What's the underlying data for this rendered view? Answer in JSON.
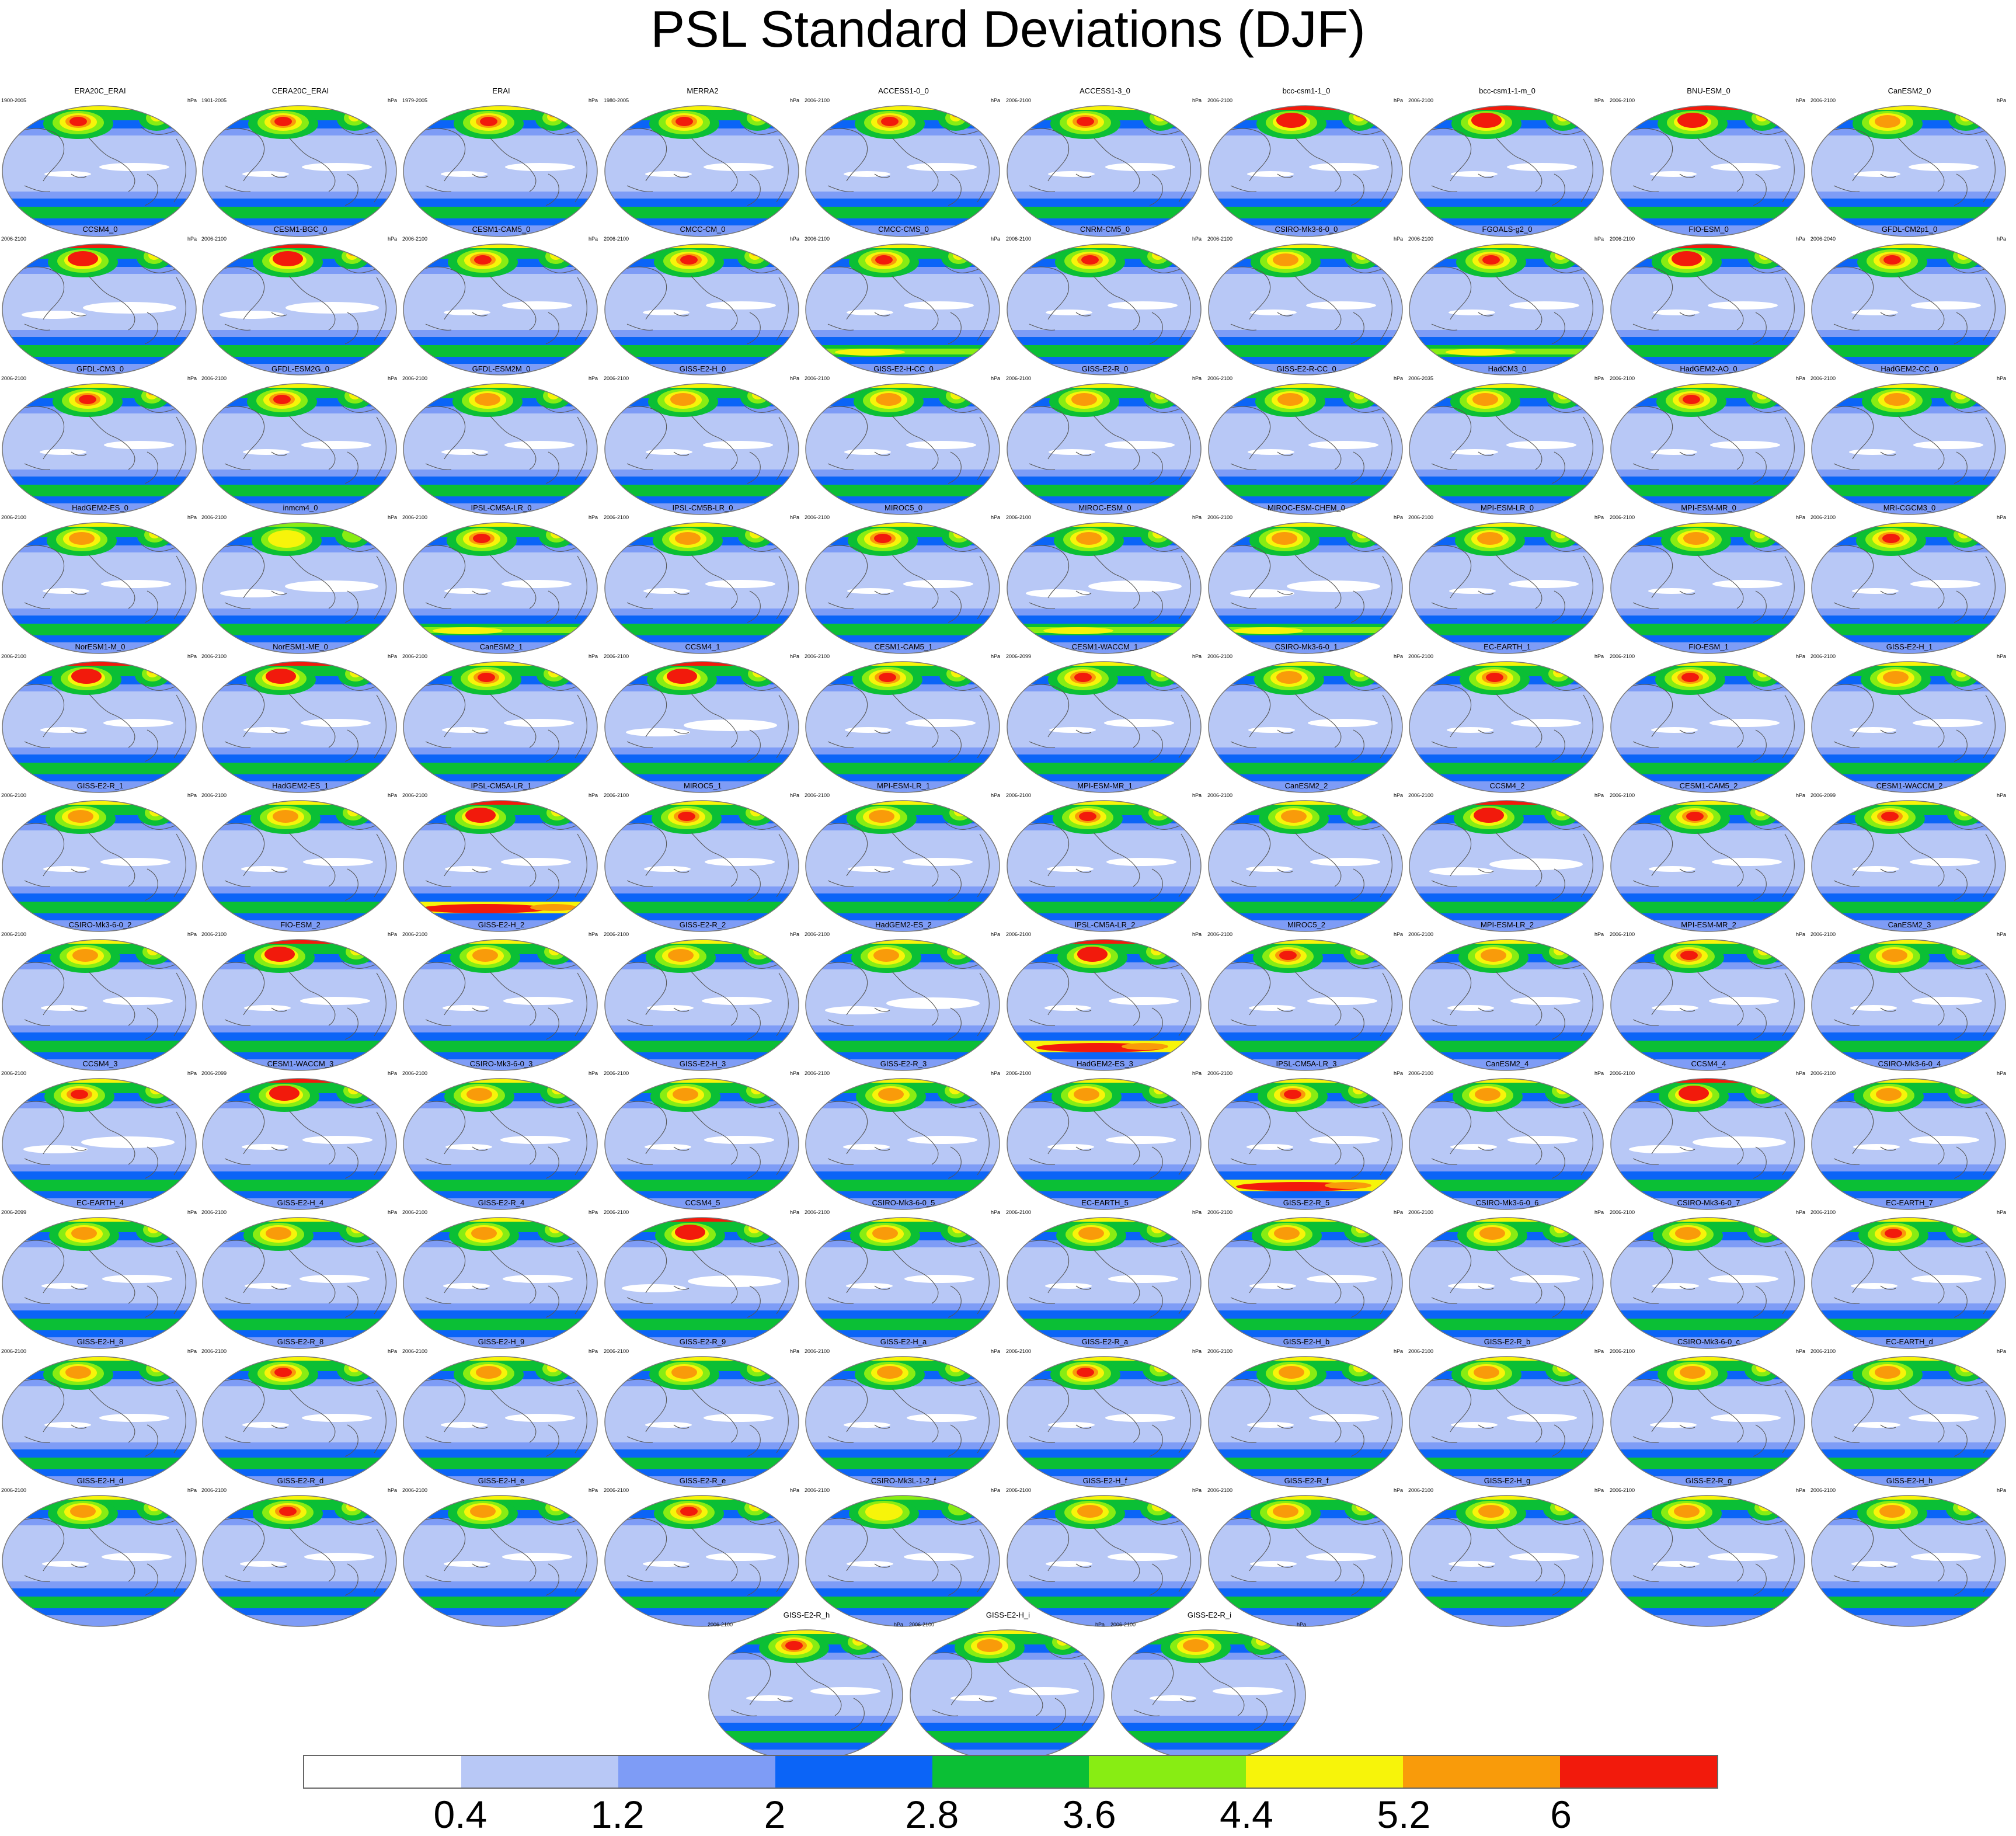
{
  "title": "PSL Standard Deviations (DJF)",
  "units": "hPa",
  "colorbar": {
    "labels": [
      "0.4",
      "1.2",
      "2",
      "2.8",
      "3.6",
      "4.4",
      "5.2",
      "6"
    ],
    "colors": [
      "#ffffff",
      "#b8c8f6",
      "#7e9cf6",
      "#0b64f7",
      "#0bbf35",
      "#88ed13",
      "#f7f40a",
      "#f99b0a",
      "#f21a0c"
    ]
  },
  "panels": [
    {
      "name": "ERA20C_ERAI",
      "years": "1900-2005",
      "nh": 3,
      "sh": 1,
      "trop": 1
    },
    {
      "name": "CERA20C_ERAI",
      "years": "1901-2005",
      "nh": 3,
      "sh": 1,
      "trop": 1
    },
    {
      "name": "ERAI",
      "years": "1979-2005",
      "nh": 3,
      "sh": 1,
      "trop": 1
    },
    {
      "name": "MERRA2",
      "years": "1980-2005",
      "nh": 3,
      "sh": 1,
      "trop": 1
    },
    {
      "name": "ACCESS1-0_0",
      "years": "2006-2100",
      "nh": 3,
      "sh": 1,
      "trop": 1
    },
    {
      "name": "ACCESS1-3_0",
      "years": "2006-2100",
      "nh": 3,
      "sh": 1,
      "trop": 1
    },
    {
      "name": "bcc-csm1-1_0",
      "years": "2006-2100",
      "nh": 4,
      "sh": 1,
      "trop": 1
    },
    {
      "name": "bcc-csm1-1-m_0",
      "years": "2006-2100",
      "nh": 4,
      "sh": 1,
      "trop": 1
    },
    {
      "name": "BNU-ESM_0",
      "years": "2006-2100",
      "nh": 4,
      "sh": 1,
      "trop": 1
    },
    {
      "name": "CanESM2_0",
      "years": "2006-2100",
      "nh": 2,
      "sh": 1,
      "trop": 1
    },
    {
      "name": "CCSM4_0",
      "years": "2006-2100",
      "nh": 4,
      "sh": 1,
      "trop": 0
    },
    {
      "name": "CESM1-BGC_0",
      "years": "2006-2100",
      "nh": 4,
      "sh": 1,
      "trop": 0
    },
    {
      "name": "CESM1-CAM5_0",
      "years": "2006-2100",
      "nh": 3,
      "sh": 1,
      "trop": 1
    },
    {
      "name": "CMCC-CM_0",
      "years": "2006-2100",
      "nh": 3,
      "sh": 1,
      "trop": 1
    },
    {
      "name": "CMCC-CMS_0",
      "years": "2006-2100",
      "nh": 3,
      "sh": 2,
      "trop": 1
    },
    {
      "name": "CNRM-CM5_0",
      "years": "2006-2100",
      "nh": 3,
      "sh": 1,
      "trop": 1
    },
    {
      "name": "CSIRO-Mk3-6-0_0",
      "years": "2006-2100",
      "nh": 2,
      "sh": 1,
      "trop": 1
    },
    {
      "name": "FGOALS-g2_0",
      "years": "2006-2100",
      "nh": 3,
      "sh": 2,
      "trop": 1
    },
    {
      "name": "FIO-ESM_0",
      "years": "2006-2100",
      "nh": 4,
      "sh": 1,
      "trop": 1
    },
    {
      "name": "GFDL-CM2p1_0",
      "years": "2006-2040",
      "nh": 3,
      "sh": 1,
      "trop": 1
    },
    {
      "name": "GFDL-CM3_0",
      "years": "2006-2100",
      "nh": 3,
      "sh": 1,
      "trop": 1
    },
    {
      "name": "GFDL-ESM2G_0",
      "years": "2006-2100",
      "nh": 3,
      "sh": 1,
      "trop": 1
    },
    {
      "name": "GFDL-ESM2M_0",
      "years": "2006-2100",
      "nh": 2,
      "sh": 1,
      "trop": 1
    },
    {
      "name": "GISS-E2-H_0",
      "years": "2006-2100",
      "nh": 2,
      "sh": 1,
      "trop": 1
    },
    {
      "name": "GISS-E2-H-CC_0",
      "years": "2006-2100",
      "nh": 2,
      "sh": 1,
      "trop": 1
    },
    {
      "name": "GISS-E2-R_0",
      "years": "2006-2100",
      "nh": 2,
      "sh": 1,
      "trop": 1
    },
    {
      "name": "GISS-E2-R-CC_0",
      "years": "2006-2100",
      "nh": 2,
      "sh": 1,
      "trop": 1
    },
    {
      "name": "HadCM3_0",
      "years": "2006-2035",
      "nh": 2,
      "sh": 1,
      "trop": 1
    },
    {
      "name": "HadGEM2-AO_0",
      "years": "2006-2100",
      "nh": 3,
      "sh": 1,
      "trop": 1
    },
    {
      "name": "HadGEM2-CC_0",
      "years": "2006-2100",
      "nh": 2,
      "sh": 1,
      "trop": 1
    },
    {
      "name": "HadGEM2-ES_0",
      "years": "2006-2100",
      "nh": 2,
      "sh": 1,
      "trop": 1
    },
    {
      "name": "inmcm4_0",
      "years": "2006-2100",
      "nh": 1,
      "sh": 1,
      "trop": 0
    },
    {
      "name": "IPSL-CM5A-LR_0",
      "years": "2006-2100",
      "nh": 3,
      "sh": 2,
      "trop": 1
    },
    {
      "name": "IPSL-CM5B-LR_0",
      "years": "2006-2100",
      "nh": 2,
      "sh": 1,
      "trop": 1
    },
    {
      "name": "MIROC5_0",
      "years": "2006-2100",
      "nh": 3,
      "sh": 1,
      "trop": 1
    },
    {
      "name": "MIROC-ESM_0",
      "years": "2006-2100",
      "nh": 2,
      "sh": 2,
      "trop": 0
    },
    {
      "name": "MIROC-ESM-CHEM_0",
      "years": "2006-2100",
      "nh": 2,
      "sh": 2,
      "trop": 0
    },
    {
      "name": "MPI-ESM-LR_0",
      "years": "2006-2100",
      "nh": 2,
      "sh": 1,
      "trop": 1
    },
    {
      "name": "MPI-ESM-MR_0",
      "years": "2006-2100",
      "nh": 2,
      "sh": 1,
      "trop": 1
    },
    {
      "name": "MRI-CGCM3_0",
      "years": "2006-2100",
      "nh": 3,
      "sh": 1,
      "trop": 1
    },
    {
      "name": "NorESM1-M_0",
      "years": "2006-2100",
      "nh": 4,
      "sh": 1,
      "trop": 1
    },
    {
      "name": "NorESM1-ME_0",
      "years": "2006-2100",
      "nh": 4,
      "sh": 1,
      "trop": 1
    },
    {
      "name": "CanESM2_1",
      "years": "2006-2100",
      "nh": 3,
      "sh": 1,
      "trop": 1
    },
    {
      "name": "CCSM4_1",
      "years": "2006-2100",
      "nh": 4,
      "sh": 1,
      "trop": 0
    },
    {
      "name": "CESM1-CAM5_1",
      "years": "2006-2100",
      "nh": 3,
      "sh": 1,
      "trop": 1
    },
    {
      "name": "CESM1-WACCM_1",
      "years": "2006-2099",
      "nh": 3,
      "sh": 1,
      "trop": 1
    },
    {
      "name": "CSIRO-Mk3-6-0_1",
      "years": "2006-2100",
      "nh": 2,
      "sh": 1,
      "trop": 1
    },
    {
      "name": "EC-EARTH_1",
      "years": "2006-2100",
      "nh": 3,
      "sh": 1,
      "trop": 1
    },
    {
      "name": "FIO-ESM_1",
      "years": "2006-2100",
      "nh": 3,
      "sh": 1,
      "trop": 1
    },
    {
      "name": "GISS-E2-H_1",
      "years": "2006-2100",
      "nh": 2,
      "sh": 1,
      "trop": 1
    },
    {
      "name": "GISS-E2-R_1",
      "years": "2006-2100",
      "nh": 2,
      "sh": 1,
      "trop": 1
    },
    {
      "name": "HadGEM2-ES_1",
      "years": "2006-2100",
      "nh": 2,
      "sh": 1,
      "trop": 1
    },
    {
      "name": "IPSL-CM5A-LR_1",
      "years": "2006-2100",
      "nh": 4,
      "sh": 3,
      "trop": 1
    },
    {
      "name": "MIROC5_1",
      "years": "2006-2100",
      "nh": 3,
      "sh": 1,
      "trop": 1
    },
    {
      "name": "MPI-ESM-LR_1",
      "years": "2006-2100",
      "nh": 2,
      "sh": 1,
      "trop": 1
    },
    {
      "name": "MPI-ESM-MR_1",
      "years": "2006-2100",
      "nh": 3,
      "sh": 1,
      "trop": 1
    },
    {
      "name": "CanESM2_2",
      "years": "2006-2100",
      "nh": 2,
      "sh": 1,
      "trop": 1
    },
    {
      "name": "CCSM4_2",
      "years": "2006-2100",
      "nh": 4,
      "sh": 1,
      "trop": 0
    },
    {
      "name": "CESM1-CAM5_2",
      "years": "2006-2100",
      "nh": 3,
      "sh": 1,
      "trop": 1
    },
    {
      "name": "CESM1-WACCM_2",
      "years": "2006-2099",
      "nh": 3,
      "sh": 1,
      "trop": 1
    },
    {
      "name": "CSIRO-Mk3-6-0_2",
      "years": "2006-2100",
      "nh": 2,
      "sh": 1,
      "trop": 1
    },
    {
      "name": "FIO-ESM_2",
      "years": "2006-2100",
      "nh": 4,
      "sh": 1,
      "trop": 1
    },
    {
      "name": "GISS-E2-H_2",
      "years": "2006-2100",
      "nh": 2,
      "sh": 1,
      "trop": 1
    },
    {
      "name": "GISS-E2-R_2",
      "years": "2006-2100",
      "nh": 2,
      "sh": 1,
      "trop": 1
    },
    {
      "name": "HadGEM2-ES_2",
      "years": "2006-2100",
      "nh": 2,
      "sh": 1,
      "trop": 0
    },
    {
      "name": "IPSL-CM5A-LR_2",
      "years": "2006-2100",
      "nh": 4,
      "sh": 3,
      "trop": 1
    },
    {
      "name": "MIROC5_2",
      "years": "2006-2100",
      "nh": 3,
      "sh": 1,
      "trop": 1
    },
    {
      "name": "MPI-ESM-LR_2",
      "years": "2006-2100",
      "nh": 2,
      "sh": 1,
      "trop": 1
    },
    {
      "name": "MPI-ESM-MR_2",
      "years": "2006-2100",
      "nh": 3,
      "sh": 1,
      "trop": 1
    },
    {
      "name": "CanESM2_3",
      "years": "2006-2100",
      "nh": 2,
      "sh": 1,
      "trop": 1
    },
    {
      "name": "CCSM4_3",
      "years": "2006-2100",
      "nh": 3,
      "sh": 1,
      "trop": 0
    },
    {
      "name": "CESM1-WACCM_3",
      "years": "2006-2099",
      "nh": 4,
      "sh": 1,
      "trop": 1
    },
    {
      "name": "CSIRO-Mk3-6-0_3",
      "years": "2006-2100",
      "nh": 2,
      "sh": 1,
      "trop": 1
    },
    {
      "name": "GISS-E2-H_3",
      "years": "2006-2100",
      "nh": 2,
      "sh": 1,
      "trop": 1
    },
    {
      "name": "GISS-E2-R_3",
      "years": "2006-2100",
      "nh": 2,
      "sh": 1,
      "trop": 1
    },
    {
      "name": "HadGEM2-ES_3",
      "years": "2006-2100",
      "nh": 2,
      "sh": 1,
      "trop": 1
    },
    {
      "name": "IPSL-CM5A-LR_3",
      "years": "2006-2100",
      "nh": 3,
      "sh": 3,
      "trop": 1
    },
    {
      "name": "CanESM2_4",
      "years": "2006-2100",
      "nh": 2,
      "sh": 1,
      "trop": 1
    },
    {
      "name": "CCSM4_4",
      "years": "2006-2100",
      "nh": 4,
      "sh": 1,
      "trop": 0
    },
    {
      "name": "CSIRO-Mk3-6-0_4",
      "years": "2006-2100",
      "nh": 2,
      "sh": 1,
      "trop": 1
    },
    {
      "name": "EC-EARTH_4",
      "years": "2006-2099",
      "nh": 2,
      "sh": 1,
      "trop": 1
    },
    {
      "name": "GISS-E2-H_4",
      "years": "2006-2100",
      "nh": 2,
      "sh": 1,
      "trop": 1
    },
    {
      "name": "GISS-E2-R_4",
      "years": "2006-2100",
      "nh": 2,
      "sh": 1,
      "trop": 1
    },
    {
      "name": "CCSM4_5",
      "years": "2006-2100",
      "nh": 4,
      "sh": 1,
      "trop": 0
    },
    {
      "name": "CSIRO-Mk3-6-0_5",
      "years": "2006-2100",
      "nh": 2,
      "sh": 1,
      "trop": 1
    },
    {
      "name": "EC-EARTH_5",
      "years": "2006-2100",
      "nh": 2,
      "sh": 1,
      "trop": 1
    },
    {
      "name": "GISS-E2-R_5",
      "years": "2006-2100",
      "nh": 2,
      "sh": 1,
      "trop": 1
    },
    {
      "name": "CSIRO-Mk3-6-0_6",
      "years": "2006-2100",
      "nh": 2,
      "sh": 1,
      "trop": 1
    },
    {
      "name": "CSIRO-Mk3-6-0_7",
      "years": "2006-2100",
      "nh": 2,
      "sh": 1,
      "trop": 1
    },
    {
      "name": "EC-EARTH_7",
      "years": "2006-2100",
      "nh": 3,
      "sh": 1,
      "trop": 1
    },
    {
      "name": "GISS-E2-H_8",
      "years": "2006-2100",
      "nh": 2,
      "sh": 1,
      "trop": 1
    },
    {
      "name": "GISS-E2-R_8",
      "years": "2006-2100",
      "nh": 3,
      "sh": 1,
      "trop": 1
    },
    {
      "name": "GISS-E2-H_9",
      "years": "2006-2100",
      "nh": 2,
      "sh": 1,
      "trop": 1
    },
    {
      "name": "GISS-E2-R_9",
      "years": "2006-2100",
      "nh": 2,
      "sh": 1,
      "trop": 1
    },
    {
      "name": "GISS-E2-H_a",
      "years": "2006-2100",
      "nh": 2,
      "sh": 1,
      "trop": 1
    },
    {
      "name": "GISS-E2-R_a",
      "years": "2006-2100",
      "nh": 3,
      "sh": 1,
      "trop": 1
    },
    {
      "name": "GISS-E2-H_b",
      "years": "2006-2100",
      "nh": 2,
      "sh": 1,
      "trop": 1
    },
    {
      "name": "GISS-E2-R_b",
      "years": "2006-2100",
      "nh": 2,
      "sh": 1,
      "trop": 1
    },
    {
      "name": "CSIRO-Mk3-6-0_c",
      "years": "2006-2100",
      "nh": 2,
      "sh": 1,
      "trop": 1
    },
    {
      "name": "EC-EARTH_d",
      "years": "2006-2100",
      "nh": 2,
      "sh": 1,
      "trop": 1
    },
    {
      "name": "GISS-E2-H_d",
      "years": "2006-2100",
      "nh": 2,
      "sh": 1,
      "trop": 1
    },
    {
      "name": "GISS-E2-R_d",
      "years": "2006-2100",
      "nh": 3,
      "sh": 1,
      "trop": 1
    },
    {
      "name": "GISS-E2-H_e",
      "years": "2006-2100",
      "nh": 2,
      "sh": 1,
      "trop": 1
    },
    {
      "name": "GISS-E2-R_e",
      "years": "2006-2100",
      "nh": 3,
      "sh": 1,
      "trop": 1
    },
    {
      "name": "CSIRO-Mk3L-1-2_f",
      "years": "2006-2100",
      "nh": 1,
      "sh": 1,
      "trop": 1
    },
    {
      "name": "GISS-E2-H_f",
      "years": "2006-2100",
      "nh": 2,
      "sh": 1,
      "trop": 1
    },
    {
      "name": "GISS-E2-R_f",
      "years": "2006-2100",
      "nh": 2,
      "sh": 1,
      "trop": 1
    },
    {
      "name": "GISS-E2-H_g",
      "years": "2006-2100",
      "nh": 2,
      "sh": 1,
      "trop": 1
    },
    {
      "name": "GISS-E2-R_g",
      "years": "2006-2100",
      "nh": 2,
      "sh": 1,
      "trop": 1
    },
    {
      "name": "GISS-E2-H_h",
      "years": "2006-2100",
      "nh": 2,
      "sh": 1,
      "trop": 1
    },
    {
      "name": "GISS-E2-R_h",
      "years": "2006-2100",
      "nh": 3,
      "sh": 1,
      "trop": 1
    },
    {
      "name": "GISS-E2-H_i",
      "years": "2006-2100",
      "nh": 2,
      "sh": 1,
      "trop": 1
    },
    {
      "name": "GISS-E2-R_i",
      "years": "2006-2100",
      "nh": 2,
      "sh": 1,
      "trop": 1
    }
  ]
}
